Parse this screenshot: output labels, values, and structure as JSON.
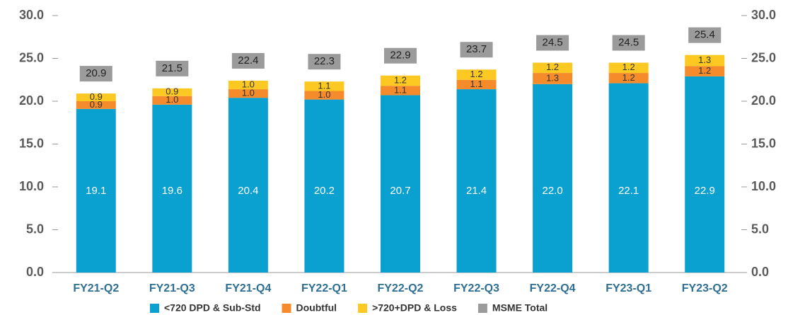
{
  "chart_data": {
    "type": "stacked-bar",
    "categories": [
      "FY21-Q2",
      "FY21-Q3",
      "FY21-Q4",
      "FY22-Q1",
      "FY22-Q2",
      "FY22-Q3",
      "FY22-Q4",
      "FY23-Q1",
      "FY23-Q2"
    ],
    "series": [
      {
        "name": "<720 DPD & Sub-Std",
        "color": "#0aa0cf",
        "values": [
          19.1,
          19.6,
          20.4,
          20.2,
          20.7,
          21.4,
          22.0,
          22.1,
          22.9
        ],
        "value_labels": [
          "19.1",
          "19.6",
          "20.4",
          "20.2",
          "20.7",
          "21.4",
          "22.0",
          "22.1",
          "22.9"
        ]
      },
      {
        "name": "Doubtful",
        "color": "#f68b2c",
        "values": [
          0.9,
          1.0,
          1.0,
          1.0,
          1.1,
          1.1,
          1.3,
          1.2,
          1.2
        ],
        "value_labels": [
          "0.9",
          "1.0",
          "1.0",
          "1.0",
          "1.1",
          "1.1",
          "1.3",
          "1.2",
          "1.2"
        ]
      },
      {
        "name": ">720+DPD & Loss",
        "color": "#fcc923",
        "values": [
          0.9,
          0.9,
          1.0,
          1.1,
          1.2,
          1.2,
          1.2,
          1.2,
          1.3
        ],
        "value_labels": [
          "0.9",
          "0.9",
          "1.0",
          "1.1",
          "1.2",
          "1.2",
          "1.2",
          "1.2",
          "1.3"
        ]
      },
      {
        "name": "MSME Total",
        "color": "#9b9b9b",
        "total": true,
        "values": [
          20.9,
          21.5,
          22.4,
          22.3,
          22.9,
          23.7,
          24.5,
          24.5,
          25.4
        ]
      }
    ],
    "ylim": [
      0,
      30
    ],
    "yticks": [
      {
        "value": 0,
        "label": "0.0"
      },
      {
        "value": 5,
        "label": "5.0"
      },
      {
        "value": 10,
        "label": "10.0"
      },
      {
        "value": 15,
        "label": "15.0"
      },
      {
        "value": 20,
        "label": "20.0"
      },
      {
        "value": 25,
        "label": "25.0"
      },
      {
        "value": 30,
        "label": "30.0"
      }
    ],
    "y2lim": [
      0,
      30
    ],
    "y2ticks": [
      {
        "value": 0,
        "label": "0.0"
      },
      {
        "value": 5,
        "label": "5.0"
      },
      {
        "value": 10,
        "label": "10.0"
      },
      {
        "value": 15,
        "label": "15.0"
      },
      {
        "value": 20,
        "label": "20.0"
      },
      {
        "value": 25,
        "label": "25.0"
      },
      {
        "value": 30,
        "label": "30.0"
      }
    ]
  }
}
